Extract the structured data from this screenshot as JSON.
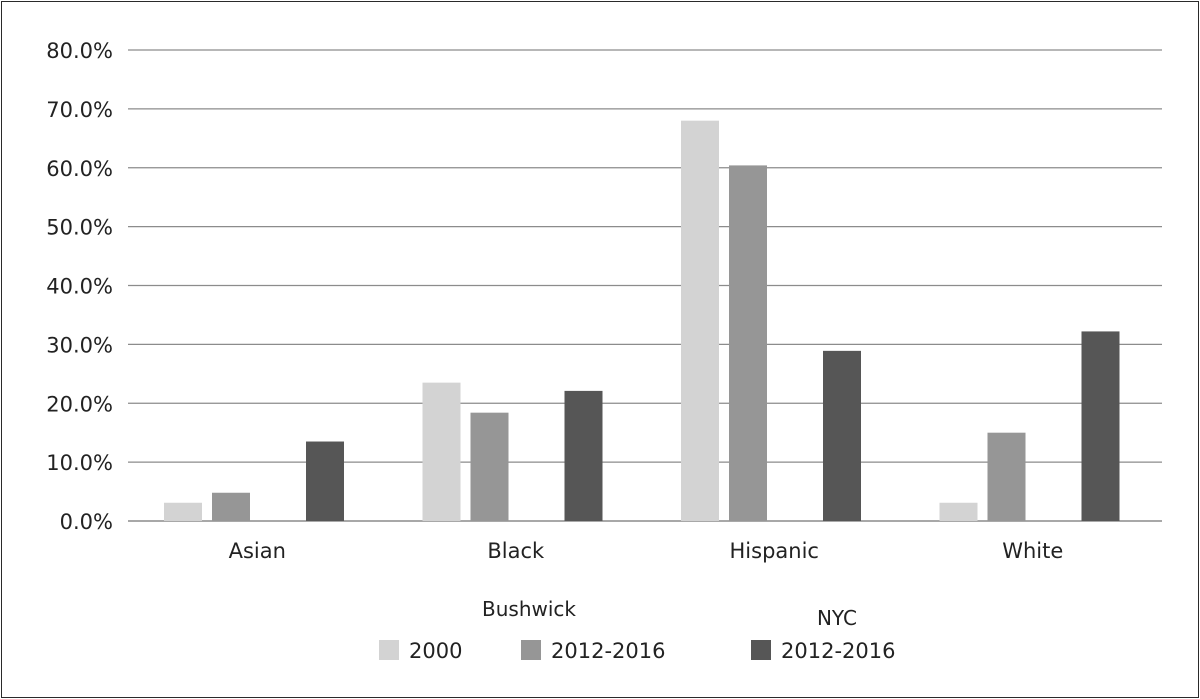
{
  "chart_data": {
    "type": "bar",
    "categories": [
      "Asian",
      "Black",
      "Hispanic",
      "White"
    ],
    "series": [
      {
        "name": "2000",
        "group": "Bushwick",
        "color": "#d3d3d3",
        "values": [
          3.1,
          23.5,
          68.0,
          3.1
        ]
      },
      {
        "name": "2012-2016",
        "group": "Bushwick",
        "color": "#969696",
        "values": [
          4.8,
          18.4,
          60.4,
          15.0
        ]
      },
      {
        "name": "2012-2016",
        "group": "NYC",
        "color": "#565656",
        "values": [
          13.5,
          22.1,
          28.9,
          32.2
        ]
      }
    ],
    "ylim": [
      0,
      80
    ],
    "yticks": [
      0,
      10,
      20,
      30,
      40,
      50,
      60,
      70,
      80
    ],
    "ytick_labels": [
      "0.0%",
      "10.0%",
      "20.0%",
      "30.0%",
      "40.0%",
      "50.0%",
      "60.0%",
      "70.0%",
      "80.0%"
    ],
    "title": "",
    "xlabel": "",
    "ylabel": "",
    "grid": true,
    "legend": {
      "placement": "bottom-center",
      "group_labels": [
        "Bushwick",
        "NYC"
      ]
    }
  }
}
